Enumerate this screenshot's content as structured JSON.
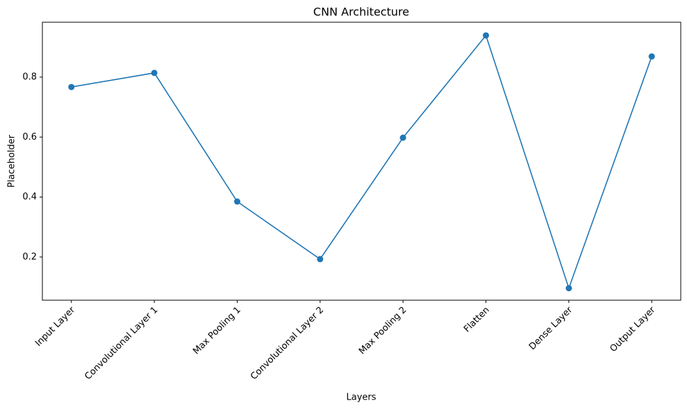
{
  "chart_data": {
    "type": "line",
    "title": "CNN Architecture",
    "x_label": "Layers",
    "y_label": "Placeholder",
    "categories": [
      "Input Layer",
      "Convolutional Layer 1",
      "Max Pooling 1",
      "Convolutional Layer 2",
      "Max Pooling 2",
      "Flatten",
      "Dense Layer",
      "Output Layer"
    ],
    "series": [
      {
        "name": "Placeholder",
        "color": "#1f77b4",
        "values": [
          0.767,
          0.814,
          0.385,
          0.193,
          0.598,
          0.939,
          0.096,
          0.869
        ]
      }
    ],
    "ylim": [
      0.056,
      0.983
    ],
    "yticks": [
      0.2,
      0.4,
      0.6,
      0.8
    ],
    "grid": false,
    "markers": true
  }
}
